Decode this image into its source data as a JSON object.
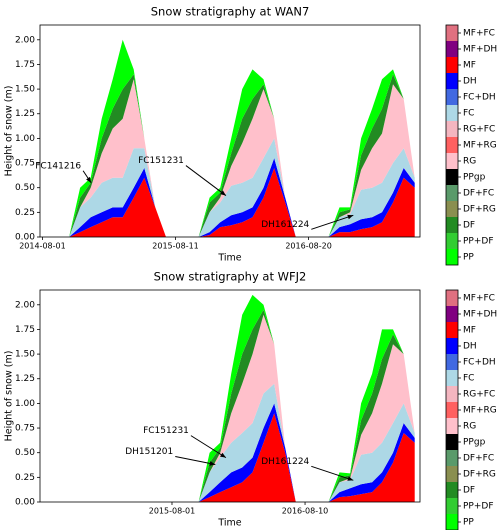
{
  "chart_data": [
    {
      "type": "stacked_area",
      "title": "Snow stratigraphy at WAN7",
      "xlabel": "Time",
      "ylabel": "Height of snow (m)",
      "x": [
        "2014-10-15",
        "2014-11-15",
        "2014-12-15",
        "2015-01-15",
        "2015-02-15",
        "2015-03-15",
        "2015-04-15",
        "2015-05-15",
        "2015-06-15",
        "2015-07-15",
        "2015-10-15",
        "2015-11-15",
        "2015-12-15",
        "2016-01-15",
        "2016-02-15",
        "2016-03-15",
        "2016-04-15",
        "2016-05-15",
        "2016-06-15",
        "2016-07-15",
        "2016-10-15",
        "2016-11-15",
        "2016-12-15",
        "2017-01-15",
        "2017-02-15",
        "2017-03-15",
        "2017-04-15",
        "2017-05-15",
        "2017-06-15"
      ],
      "series": [
        {
          "name": "MF",
          "color": "#ff0000",
          "values": [
            0,
            0.05,
            0.1,
            0.15,
            0.2,
            0.2,
            0.4,
            0.6,
            0.3,
            0,
            0,
            0.02,
            0.1,
            0.12,
            0.15,
            0.2,
            0.4,
            0.7,
            0.35,
            0,
            0,
            0.05,
            0.05,
            0.08,
            0.1,
            0.15,
            0.35,
            0.6,
            0.5
          ]
        },
        {
          "name": "DH",
          "color": "#0000ff",
          "values": [
            0,
            0.05,
            0.1,
            0.1,
            0.1,
            0.1,
            0.1,
            0.1,
            0,
            0,
            0,
            0.03,
            0.05,
            0.1,
            0.1,
            0.1,
            0.1,
            0.1,
            0.05,
            0,
            0,
            0.05,
            0.08,
            0.1,
            0.1,
            0.1,
            0.1,
            0.1,
            0.05
          ]
        },
        {
          "name": "FC",
          "color": "#add8e6",
          "values": [
            0,
            0.2,
            0.2,
            0.3,
            0.3,
            0.3,
            0.4,
            0.2,
            0,
            0,
            0,
            0.2,
            0.2,
            0.3,
            0.3,
            0.3,
            0.3,
            0.2,
            0,
            0,
            0,
            0.1,
            0.1,
            0.3,
            0.3,
            0.3,
            0.3,
            0.2,
            0.05
          ]
        },
        {
          "name": "RG",
          "color": "#ffc0cb",
          "values": [
            0,
            0,
            0.1,
            0.3,
            0.5,
            0.6,
            0.7,
            0.1,
            0,
            0,
            0,
            0,
            0.05,
            0.2,
            0.4,
            0.6,
            0.7,
            0.2,
            0,
            0,
            0,
            0,
            0.02,
            0.2,
            0.4,
            0.5,
            0.8,
            0.5,
            0
          ]
        },
        {
          "name": "DF",
          "color": "#228b22",
          "values": [
            0,
            0.1,
            0.05,
            0.15,
            0.2,
            0.3,
            0.05,
            0,
            0,
            0,
            0,
            0.1,
            0.05,
            0.13,
            0.25,
            0.2,
            0.05,
            0,
            0,
            0,
            0,
            0.05,
            0.03,
            0.15,
            0.2,
            0.25,
            0.1,
            0,
            0
          ]
        },
        {
          "name": "PP",
          "color": "#00ff00",
          "values": [
            0,
            0.1,
            0.05,
            0.2,
            0.3,
            0.5,
            0.05,
            0,
            0,
            0,
            0,
            0.05,
            0.05,
            0.15,
            0.3,
            0.3,
            0.05,
            0,
            0,
            0,
            0,
            0.05,
            0.02,
            0.17,
            0.2,
            0.3,
            0.05,
            0,
            0
          ]
        }
      ],
      "xlim": [
        "2014-07-25",
        "2017-06-30"
      ],
      "xticks": [
        "2014-08-01",
        "2015-08-11",
        "2016-08-20"
      ],
      "ylim": [
        0,
        2.15
      ],
      "yticks": [
        {
          "value": 0,
          "label": "0.00"
        },
        {
          "value": 0.25,
          "label": "0.25"
        },
        {
          "value": 0.5,
          "label": "0.50"
        },
        {
          "value": 0.75,
          "label": "0.75"
        },
        {
          "value": 1,
          "label": "1.00"
        },
        {
          "value": 1.25,
          "label": "1.25"
        },
        {
          "value": 1.5,
          "label": "1.50"
        },
        {
          "value": 1.75,
          "label": "1.75"
        },
        {
          "value": 2,
          "label": "2.00"
        }
      ],
      "annotations": [
        {
          "text": "FC141216",
          "x": "2014-12-16",
          "y": 0.55
        },
        {
          "text": "FC151231",
          "x": "2015-12-31",
          "y": 0.42
        },
        {
          "text": "DH161224",
          "x": "2016-12-24",
          "y": 0.22
        }
      ],
      "legend": [
        {
          "name": "MF+FC",
          "color": "#e07080"
        },
        {
          "name": "MF+DH",
          "color": "#800080"
        },
        {
          "name": "MF",
          "color": "#ff0000"
        },
        {
          "name": "DH",
          "color": "#0000ff"
        },
        {
          "name": "FC+DH",
          "color": "#4169e1"
        },
        {
          "name": "FC",
          "color": "#add8e6"
        },
        {
          "name": "RG+FC",
          "color": "#f4b6c0"
        },
        {
          "name": "MF+RG",
          "color": "#ff6060"
        },
        {
          "name": "RG",
          "color": "#ffc0cb"
        },
        {
          "name": "PPgp",
          "color": "#000000"
        },
        {
          "name": "DF+FC",
          "color": "#5a9a6a"
        },
        {
          "name": "DF+RG",
          "color": "#8a8f50"
        },
        {
          "name": "DF",
          "color": "#228b22"
        },
        {
          "name": "PP+DF",
          "color": "#32cd32"
        },
        {
          "name": "PP",
          "color": "#00ff00"
        }
      ]
    },
    {
      "type": "stacked_area",
      "title": "Snow stratigraphy at WFJ2",
      "xlabel": "Time",
      "ylabel": "Height of snow (m)",
      "x": [
        "2015-10-15",
        "2015-11-15",
        "2015-12-15",
        "2016-01-15",
        "2016-02-15",
        "2016-03-15",
        "2016-04-15",
        "2016-05-15",
        "2016-06-15",
        "2016-07-15",
        "2016-10-15",
        "2016-11-15",
        "2016-12-15",
        "2017-01-15",
        "2017-02-15",
        "2017-03-15",
        "2017-04-15",
        "2017-05-15",
        "2017-06-15"
      ],
      "series": [
        {
          "name": "MF",
          "color": "#ff0000",
          "values": [
            0,
            0.05,
            0.1,
            0.15,
            0.2,
            0.3,
            0.6,
            0.9,
            0.5,
            0,
            0,
            0.05,
            0.06,
            0.08,
            0.1,
            0.2,
            0.4,
            0.7,
            0.6
          ]
        },
        {
          "name": "DH",
          "color": "#0000ff",
          "values": [
            0,
            0.05,
            0.1,
            0.15,
            0.15,
            0.15,
            0.15,
            0.1,
            0.05,
            0,
            0,
            0.05,
            0.08,
            0.1,
            0.1,
            0.1,
            0.1,
            0.1,
            0.05
          ]
        },
        {
          "name": "FC",
          "color": "#add8e6",
          "values": [
            0,
            0.2,
            0.25,
            0.3,
            0.35,
            0.35,
            0.35,
            0.2,
            0,
            0,
            0,
            0.1,
            0.08,
            0.3,
            0.3,
            0.3,
            0.3,
            0.2,
            0.05
          ]
        },
        {
          "name": "RG",
          "color": "#ffc0cb",
          "values": [
            0,
            0,
            0.05,
            0.3,
            0.5,
            0.7,
            0.8,
            0.4,
            0,
            0,
            0,
            0,
            0.02,
            0.2,
            0.4,
            0.6,
            0.8,
            0.5,
            0
          ]
        },
        {
          "name": "DF",
          "color": "#228b22",
          "values": [
            0,
            0.1,
            0.05,
            0.2,
            0.3,
            0.25,
            0.05,
            0,
            0,
            0,
            0,
            0.05,
            0.03,
            0.15,
            0.2,
            0.25,
            0.1,
            0,
            0
          ]
        },
        {
          "name": "PP",
          "color": "#00ff00",
          "values": [
            0,
            0.1,
            0.05,
            0.2,
            0.4,
            0.35,
            0.05,
            0,
            0,
            0,
            0,
            0.05,
            0.02,
            0.17,
            0.2,
            0.3,
            0.05,
            0,
            0
          ]
        }
      ],
      "xlim": [
        "2014-07-25",
        "2017-06-30"
      ],
      "xticks": [
        "2015-08-01",
        "2016-08-10"
      ],
      "ylim": [
        0,
        2.15
      ],
      "yticks": [
        {
          "value": 0,
          "label": "0.00"
        },
        {
          "value": 0.25,
          "label": "0.25"
        },
        {
          "value": 0.5,
          "label": "0.50"
        },
        {
          "value": 0.75,
          "label": "0.75"
        },
        {
          "value": 1,
          "label": "1.00"
        },
        {
          "value": 1.25,
          "label": "1.25"
        },
        {
          "value": 1.5,
          "label": "1.50"
        },
        {
          "value": 1.75,
          "label": "1.75"
        },
        {
          "value": 2,
          "label": "2.00"
        }
      ],
      "annotations": [
        {
          "text": "FC151231",
          "x": "2015-12-31",
          "y": 0.45
        },
        {
          "text": "DH151201",
          "x": "2015-12-01",
          "y": 0.38
        },
        {
          "text": "DH161224",
          "x": "2016-12-24",
          "y": 0.22
        }
      ],
      "legend": [
        {
          "name": "MF+FC",
          "color": "#e07080"
        },
        {
          "name": "MF+DH",
          "color": "#800080"
        },
        {
          "name": "MF",
          "color": "#ff0000"
        },
        {
          "name": "DH",
          "color": "#0000ff"
        },
        {
          "name": "FC+DH",
          "color": "#4169e1"
        },
        {
          "name": "FC",
          "color": "#add8e6"
        },
        {
          "name": "RG+FC",
          "color": "#f4b6c0"
        },
        {
          "name": "MF+RG",
          "color": "#ff6060"
        },
        {
          "name": "RG",
          "color": "#ffc0cb"
        },
        {
          "name": "PPgp",
          "color": "#000000"
        },
        {
          "name": "DF+FC",
          "color": "#5a9a6a"
        },
        {
          "name": "DF+RG",
          "color": "#8a8f50"
        },
        {
          "name": "DF",
          "color": "#228b22"
        },
        {
          "name": "PP+DF",
          "color": "#32cd32"
        },
        {
          "name": "PP",
          "color": "#00ff00"
        }
      ]
    }
  ]
}
